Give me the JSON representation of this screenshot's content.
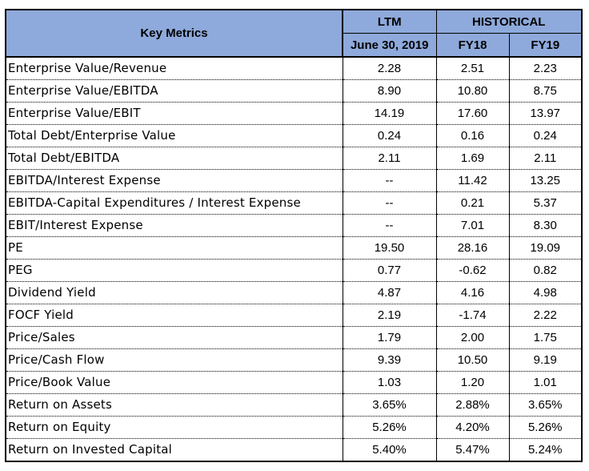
{
  "table": {
    "header": {
      "metric_label": "Key Metrics",
      "ltm_label": "LTM",
      "historical_label": "HISTORICAL",
      "ltm_period": "June 30, 2019",
      "fy18_label": "FY18",
      "fy19_label": "FY19"
    },
    "header_color": "#8EA9DB",
    "rows": [
      {
        "metric": "Enterprise Value/Revenue",
        "ltm": "2.28",
        "fy18": "2.51",
        "fy19": "2.23"
      },
      {
        "metric": "Enterprise Value/EBITDA",
        "ltm": "8.90",
        "fy18": "10.80",
        "fy19": "8.75"
      },
      {
        "metric": "Enterprise Value/EBIT",
        "ltm": "14.19",
        "fy18": "17.60",
        "fy19": "13.97"
      },
      {
        "metric": "Total Debt/Enterprise Value",
        "ltm": "0.24",
        "fy18": "0.16",
        "fy19": "0.24"
      },
      {
        "metric": "Total Debt/EBITDA",
        "ltm": "2.11",
        "fy18": "1.69",
        "fy19": "2.11"
      },
      {
        "metric": "EBITDA/Interest Expense",
        "ltm": "--",
        "fy18": "11.42",
        "fy19": "13.25"
      },
      {
        "metric": "EBITDA-Capital Expenditures / Interest Expense",
        "ltm": "--",
        "fy18": "0.21",
        "fy19": "5.37"
      },
      {
        "metric": "EBIT/Interest Expense",
        "ltm": "--",
        "fy18": "7.01",
        "fy19": "8.30"
      },
      {
        "metric": "PE",
        "ltm": "19.50",
        "fy18": "28.16",
        "fy19": "19.09"
      },
      {
        "metric": "PEG",
        "ltm": "0.77",
        "fy18": "-0.62",
        "fy19": "0.82"
      },
      {
        "metric": "Dividend Yield",
        "ltm": "4.87",
        "fy18": "4.16",
        "fy19": "4.98"
      },
      {
        "metric": "FOCF Yield",
        "ltm": "2.19",
        "fy18": "-1.74",
        "fy19": "2.22"
      },
      {
        "metric": "Price/Sales",
        "ltm": "1.79",
        "fy18": "2.00",
        "fy19": "1.75"
      },
      {
        "metric": "Price/Cash Flow",
        "ltm": "9.39",
        "fy18": "10.50",
        "fy19": "9.19"
      },
      {
        "metric": "Price/Book Value",
        "ltm": "1.03",
        "fy18": "1.20",
        "fy19": "1.01"
      },
      {
        "metric": "Return on Assets",
        "ltm": "3.65%",
        "fy18": "2.88%",
        "fy19": "3.65%"
      },
      {
        "metric": "Return on Equity",
        "ltm": "5.26%",
        "fy18": "4.20%",
        "fy19": "5.26%"
      },
      {
        "metric": "Return on Invested Capital",
        "ltm": "5.40%",
        "fy18": "5.47%",
        "fy19": "5.24%"
      }
    ]
  }
}
